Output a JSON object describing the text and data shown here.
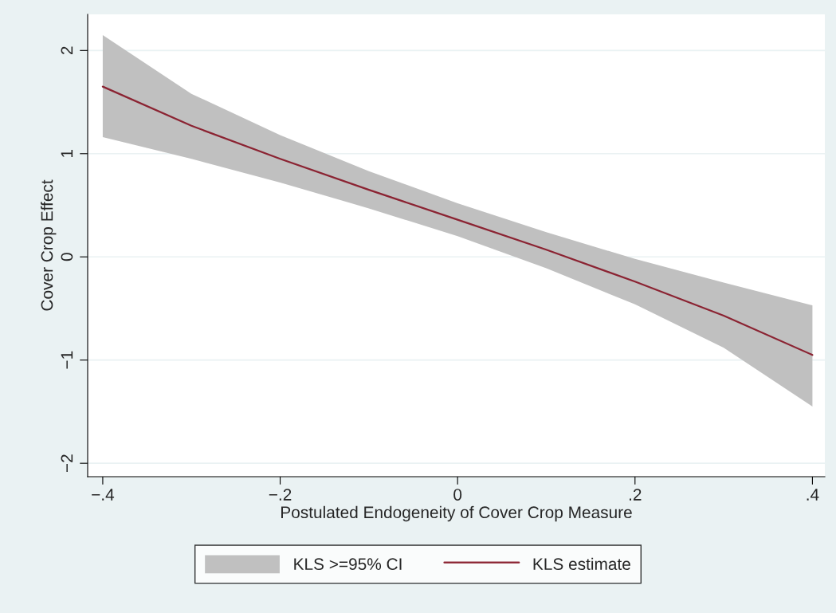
{
  "chart_data": {
    "type": "line",
    "xlabel": "Postulated Endogeneity of Cover Crop Measure",
    "ylabel": "Cover Crop Effect",
    "x": [
      -0.4,
      -0.3,
      -0.2,
      -0.1,
      0,
      0.1,
      0.2,
      0.3,
      0.4
    ],
    "series": [
      {
        "name": "KLS estimate",
        "color": "#8b2332",
        "values": [
          1.65,
          1.27,
          0.95,
          0.65,
          0.36,
          0.07,
          -0.24,
          -0.57,
          -0.95
        ],
        "lower": [
          1.16,
          0.95,
          0.72,
          0.47,
          0.2,
          -0.11,
          -0.46,
          -0.88,
          -1.45
        ],
        "upper": [
          2.15,
          1.58,
          1.18,
          0.83,
          0.52,
          0.24,
          -0.02,
          -0.25,
          -0.47
        ]
      }
    ],
    "annotations": [
      "KLS >=95% CI"
    ],
    "xlim": [
      -0.417,
      0.414
    ],
    "ylim": [
      -2.13,
      2.35
    ],
    "xticks": [
      {
        "value": -0.4,
        "label": "−.4"
      },
      {
        "value": -0.2,
        "label": "−.2"
      },
      0,
      {
        "value": 0.2,
        "label": ".2"
      },
      {
        "value": 0.4,
        "label": ".4"
      }
    ],
    "yticks": [
      {
        "value": -2,
        "label": "−2"
      },
      {
        "value": -1,
        "label": "−1"
      },
      0,
      1,
      2
    ],
    "grid": "y",
    "legend": "bottom",
    "marker": "none",
    "line_style": "solid"
  }
}
